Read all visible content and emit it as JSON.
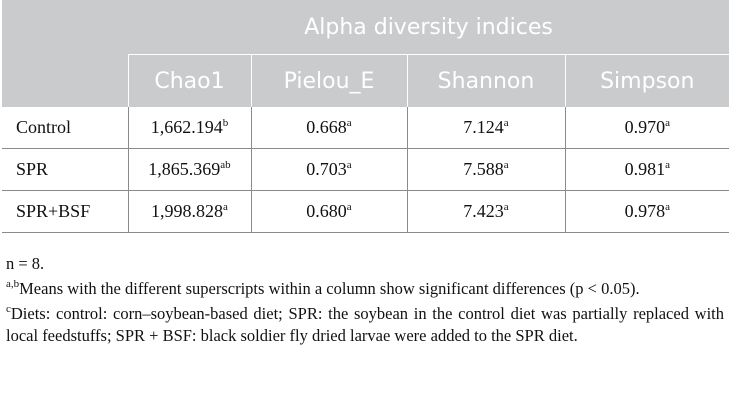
{
  "table": {
    "group_header": "Alpha diversity indices",
    "columns": [
      "Chao1",
      "Pielou_E",
      "Shannon",
      "Simpson"
    ],
    "rows": [
      {
        "label": "Control",
        "cells": [
          {
            "value": "1,662.194",
            "sup": "b"
          },
          {
            "value": "0.668",
            "sup": "a"
          },
          {
            "value": "7.124",
            "sup": "a"
          },
          {
            "value": "0.970",
            "sup": "a"
          }
        ]
      },
      {
        "label": "SPR",
        "cells": [
          {
            "value": "1,865.369",
            "sup": "ab"
          },
          {
            "value": "0.703",
            "sup": "a"
          },
          {
            "value": "7.588",
            "sup": "a"
          },
          {
            "value": "0.981",
            "sup": "a"
          }
        ]
      },
      {
        "label": "SPR+BSF",
        "cells": [
          {
            "value": "1,998.828",
            "sup": "a"
          },
          {
            "value": "0.680",
            "sup": "a"
          },
          {
            "value": "7.423",
            "sup": "a"
          },
          {
            "value": "0.978",
            "sup": "a"
          }
        ]
      }
    ]
  },
  "notes": {
    "n": "n = 8.",
    "note_ab_sup": "a,b",
    "note_ab": "Means with the different superscripts within a column show significant differences (p < 0.05).",
    "note_c_sup": "c",
    "note_c": "Diets: control: corn–soybean-based diet; SPR: the soybean in the control diet was partially replaced with local feedstuffs; SPR + BSF: black soldier fly dried larvae were added to the SPR diet."
  }
}
